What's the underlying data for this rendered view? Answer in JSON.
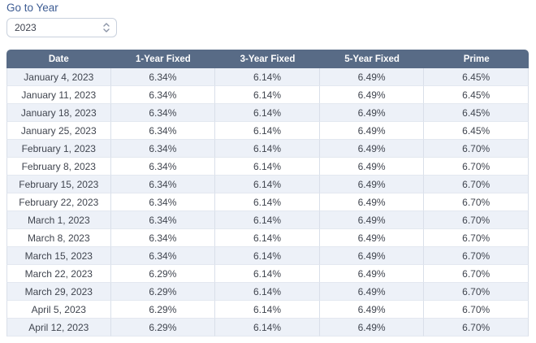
{
  "controls": {
    "go_to_year_label": "Go to Year",
    "year_select": {
      "value": "2023"
    },
    "stepper_icon": "up-down-chevrons"
  },
  "colors": {
    "label_blue": "#3d5c93",
    "header_bg": "#586b86",
    "header_text": "#ffffff",
    "alt_row_bg": "#edf1f8",
    "cell_text": "#40454f",
    "border": "#d9dfe9"
  },
  "table": {
    "headers": [
      "Date",
      "1-Year Fixed",
      "3-Year Fixed",
      "5-Year Fixed",
      "Prime"
    ],
    "rows": [
      [
        "January 4, 2023",
        "6.34%",
        "6.14%",
        "6.49%",
        "6.45%"
      ],
      [
        "January 11, 2023",
        "6.34%",
        "6.14%",
        "6.49%",
        "6.45%"
      ],
      [
        "January 18, 2023",
        "6.34%",
        "6.14%",
        "6.49%",
        "6.45%"
      ],
      [
        "January 25, 2023",
        "6.34%",
        "6.14%",
        "6.49%",
        "6.45%"
      ],
      [
        "February 1, 2023",
        "6.34%",
        "6.14%",
        "6.49%",
        "6.70%"
      ],
      [
        "February 8, 2023",
        "6.34%",
        "6.14%",
        "6.49%",
        "6.70%"
      ],
      [
        "February 15, 2023",
        "6.34%",
        "6.14%",
        "6.49%",
        "6.70%"
      ],
      [
        "February 22, 2023",
        "6.34%",
        "6.14%",
        "6.49%",
        "6.70%"
      ],
      [
        "March 1, 2023",
        "6.34%",
        "6.14%",
        "6.49%",
        "6.70%"
      ],
      [
        "March 8, 2023",
        "6.34%",
        "6.14%",
        "6.49%",
        "6.70%"
      ],
      [
        "March 15, 2023",
        "6.34%",
        "6.14%",
        "6.49%",
        "6.70%"
      ],
      [
        "March 22, 2023",
        "6.29%",
        "6.14%",
        "6.49%",
        "6.70%"
      ],
      [
        "March 29, 2023",
        "6.29%",
        "6.14%",
        "6.49%",
        "6.70%"
      ],
      [
        "April 5, 2023",
        "6.29%",
        "6.14%",
        "6.49%",
        "6.70%"
      ],
      [
        "April 12, 2023",
        "6.29%",
        "6.14%",
        "6.49%",
        "6.70%"
      ]
    ]
  }
}
